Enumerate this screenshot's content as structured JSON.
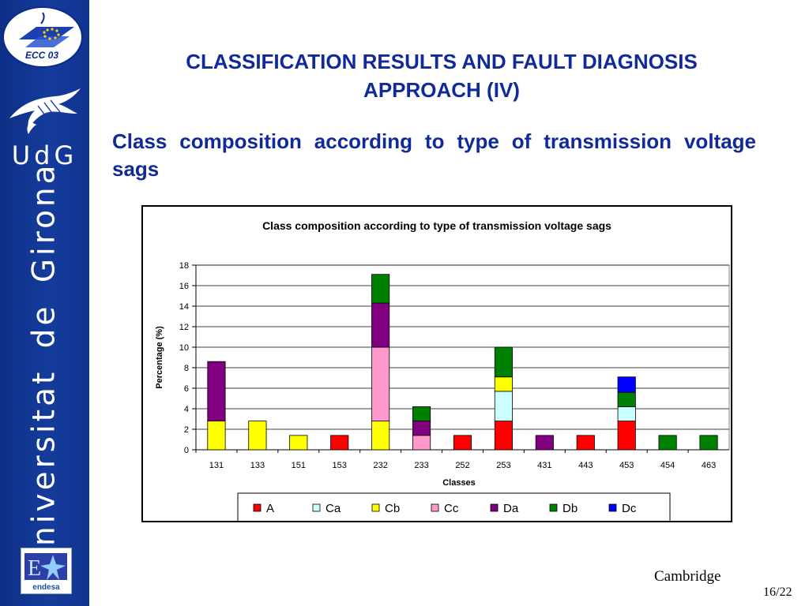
{
  "sidebar": {
    "ecc_label": "ECC 03",
    "udg_label": "UdG",
    "university": "Universitat de Girona",
    "endesa_label": "endesa",
    "colors": {
      "banner": "#153c9c",
      "text": "#ffffff"
    }
  },
  "slide": {
    "title_line1": "CLASSIFICATION RESULTS AND FAULT DIAGNOSIS",
    "title_line2": "APPROACH (IV)",
    "subtitle": "Class composition according to type of transmission voltage sags",
    "footer_location": "Cambridge",
    "page": "16/22",
    "title_color": "#102a9a"
  },
  "chart_data": {
    "type": "bar",
    "stacked": true,
    "title": "Class composition according to type of transmission voltage sags",
    "xlabel": "Classes",
    "ylabel": "Percentage (%)",
    "ylim": [
      0,
      18
    ],
    "yticks": [
      "0",
      "2",
      "4",
      "6",
      "8",
      "10",
      "12",
      "14",
      "16",
      "18"
    ],
    "grid": true,
    "legend_position": "bottom",
    "categories": [
      "131",
      "133",
      "151",
      "153",
      "232",
      "233",
      "252",
      "253",
      "431",
      "443",
      "453",
      "454",
      "463"
    ],
    "series": [
      {
        "name": "A",
        "color": "#ff0000",
        "values": [
          0,
          0,
          0,
          1.4,
          0,
          0,
          1.4,
          2.8,
          0,
          1.4,
          2.8,
          0,
          0
        ]
      },
      {
        "name": "Ca",
        "color": "#ccffff",
        "values": [
          0,
          0,
          0,
          0,
          0,
          0,
          0,
          2.9,
          0,
          0,
          1.4,
          0,
          0
        ]
      },
      {
        "name": "Cb",
        "color": "#ffff00",
        "values": [
          2.8,
          2.8,
          1.4,
          0,
          2.8,
          0,
          0,
          1.4,
          0,
          0,
          0,
          0,
          0
        ]
      },
      {
        "name": "Cc",
        "color": "#ff99cc",
        "values": [
          0,
          0,
          0,
          0,
          7.2,
          1.4,
          0,
          0,
          0,
          0,
          0,
          0,
          0
        ]
      },
      {
        "name": "Da",
        "color": "#800080",
        "values": [
          5.8,
          0,
          0,
          0,
          4.3,
          1.4,
          0,
          0,
          1.4,
          0,
          0,
          0,
          0
        ]
      },
      {
        "name": "Db",
        "color": "#008000",
        "values": [
          0,
          0,
          0,
          0,
          2.8,
          1.4,
          0,
          2.9,
          0,
          0,
          1.4,
          1.4,
          1.4
        ]
      },
      {
        "name": "Dc",
        "color": "#0000ff",
        "values": [
          0,
          0,
          0,
          0,
          0,
          0,
          0,
          0,
          0,
          0,
          1.5,
          0,
          0
        ]
      }
    ]
  }
}
